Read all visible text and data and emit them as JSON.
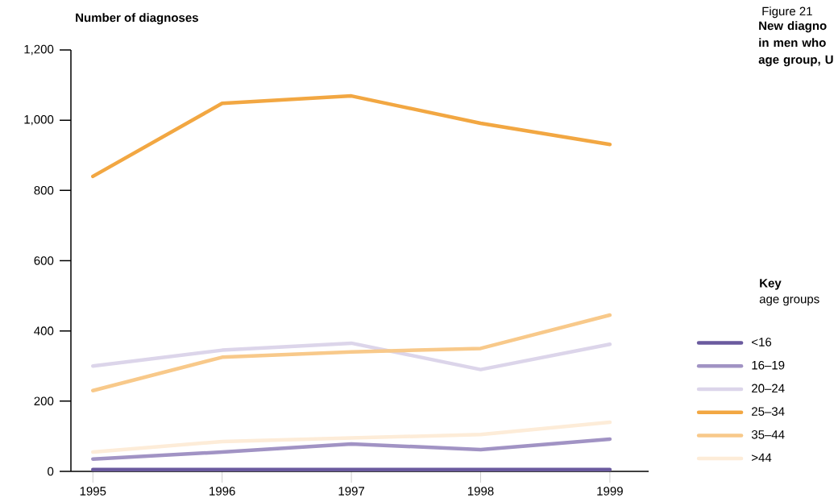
{
  "chart_data": {
    "type": "line",
    "title": "New diagno in men who age group, U",
    "ylabel": "Number of diagnoses",
    "legend_title": "Key",
    "annotations": [
      "Figure 21",
      "age groups"
    ],
    "x": [
      1995,
      1996,
      1997,
      1998,
      1999
    ],
    "xlim": [
      1994.83,
      1999.3
    ],
    "xticks": [
      1995,
      1996,
      1997,
      1998,
      1999
    ],
    "ylim": [
      0,
      1200
    ],
    "yticks": [
      0,
      200,
      400,
      600,
      800,
      {
        "value": 1000,
        "label": "1,000"
      },
      {
        "value": 1200,
        "label": "1,200"
      }
    ],
    "grid": false,
    "legend": "right",
    "marker": "none",
    "line_style": "solid",
    "series": [
      {
        "name": "<16",
        "color": "#6a5a9e",
        "values": [
          5,
          5,
          5,
          5,
          5
        ]
      },
      {
        "name": "16–19",
        "color": "#a193c4",
        "values": [
          35,
          55,
          78,
          62,
          92
        ]
      },
      {
        "name": "20–24",
        "color": "#dcd5ea",
        "values": [
          300,
          345,
          365,
          290,
          362
        ]
      },
      {
        "name": "25–34",
        "color": "#f2a742",
        "values": [
          840,
          1048,
          1069,
          991,
          931
        ]
      },
      {
        "name": "35–44",
        "color": "#f8c98a",
        "values": [
          230,
          325,
          340,
          350,
          445
        ]
      },
      {
        "name": ">44",
        "color": "#fdecd8",
        "values": [
          55,
          85,
          95,
          105,
          140
        ]
      }
    ]
  }
}
